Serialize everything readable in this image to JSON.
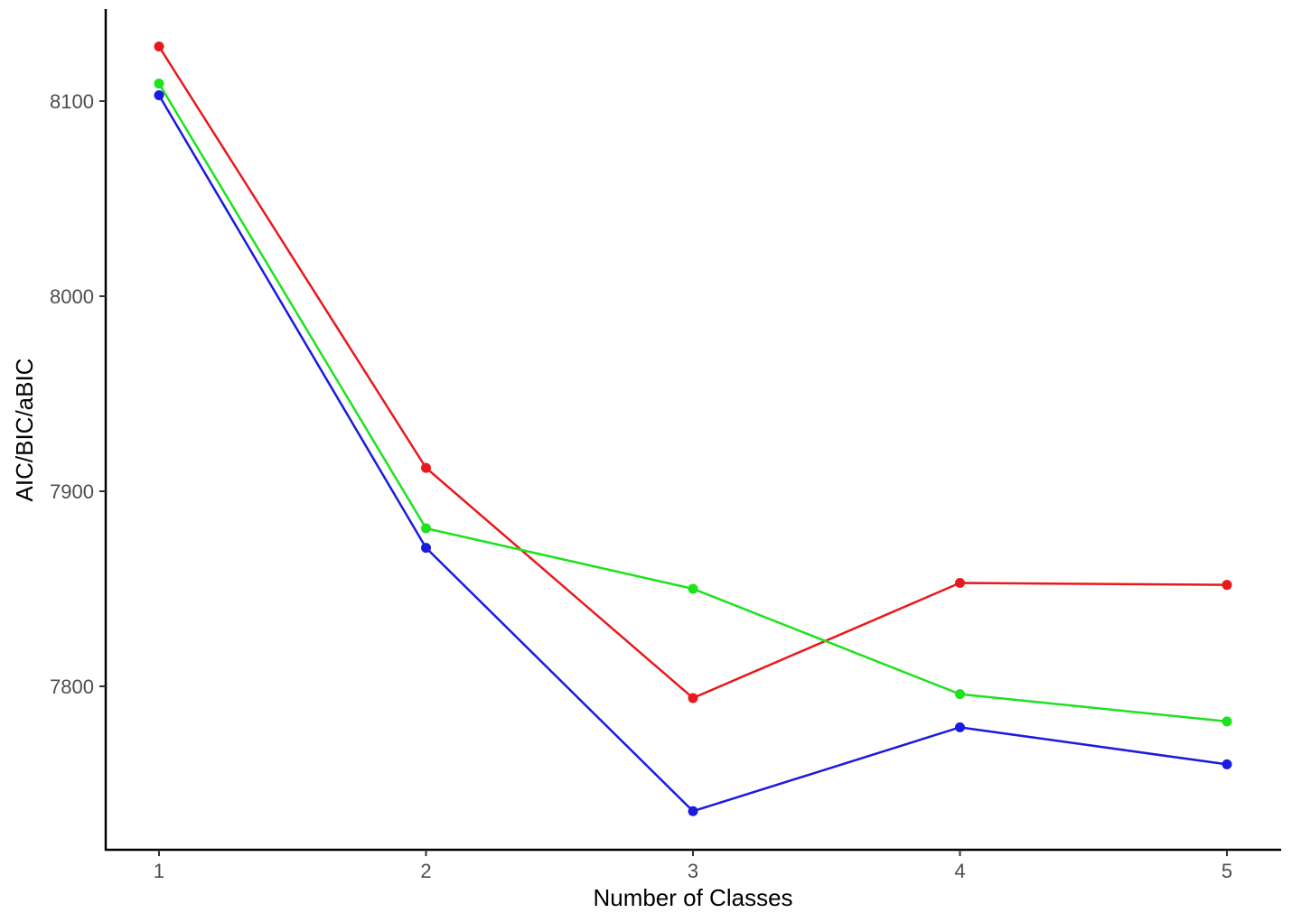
{
  "chart_data": {
    "type": "line",
    "title": "",
    "xlabel": "Number of Classes",
    "ylabel": "AIC/BIC/aBIC",
    "x": [
      1,
      2,
      3,
      4,
      5
    ],
    "x_tick_labels": [
      "1",
      "2",
      "3",
      "4",
      "5"
    ],
    "y_tick_labels": [
      "7800",
      "7900",
      "8000",
      "8100"
    ],
    "y_ticks": [
      7800,
      7900,
      8000,
      8100
    ],
    "ylim": [
      7718,
      8145
    ],
    "grid": false,
    "legend": null,
    "series": [
      {
        "name": "red series",
        "color": "#e8191c",
        "values": [
          8128,
          7912,
          7794,
          7853,
          7852
        ]
      },
      {
        "name": "green series",
        "color": "#1de21d",
        "values": [
          8109,
          7881,
          7850,
          7796,
          7782
        ]
      },
      {
        "name": "blue series",
        "color": "#1a1ae0",
        "values": [
          8103,
          7871,
          7736,
          7779,
          7760
        ]
      }
    ]
  }
}
